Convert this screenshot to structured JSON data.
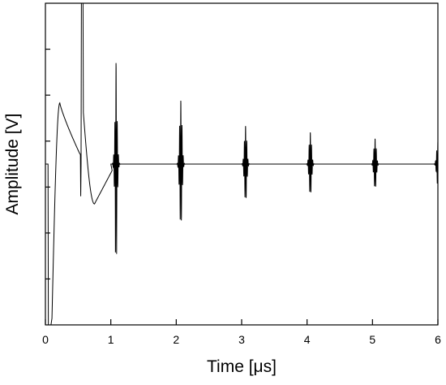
{
  "chart_data": {
    "type": "line",
    "xlabel": "Time [μs]",
    "ylabel": "Amplitude [V]",
    "xlim": [
      0,
      6
    ],
    "ylim": [
      -2.5,
      2.5
    ],
    "x_ticks": [
      "0",
      "1",
      "2",
      "3",
      "4",
      "5",
      "6"
    ],
    "y_tick_count": 6,
    "y_tick_labels_shown": false,
    "grid": false,
    "legend": "none",
    "line_color": "#000000",
    "features": {
      "baseline": 0.0,
      "initial_dip": {
        "x": 0.1,
        "y": -2.5
      },
      "first_hump": {
        "x": 0.22,
        "y": 0.95
      },
      "excitation_spike": {
        "x_start": 0.55,
        "x_end": 0.58,
        "y_max": 2.5,
        "y_min": -0.5
      },
      "trough": {
        "x": 0.75,
        "y": -0.62
      },
      "echo_times": [
        1.08,
        2.07,
        3.06,
        4.05,
        5.04,
        6.0
      ],
      "echo_peak_amplitudes": [
        1.1,
        1.0,
        0.6,
        0.5,
        0.4,
        0.35
      ]
    }
  }
}
